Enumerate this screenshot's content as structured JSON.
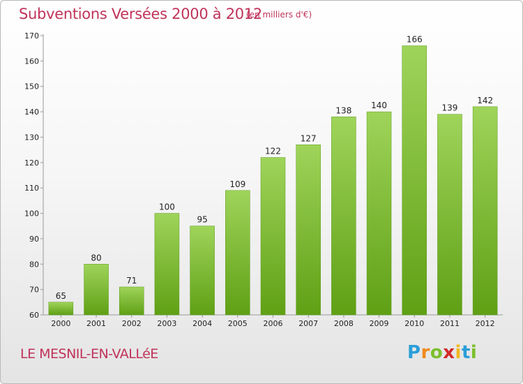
{
  "title": "Subventions Versées 2000 à 2012",
  "subtitle": "(en milliers d'€)",
  "commune": "LE MESNIL-EN-VALLéE",
  "logo": {
    "letters": [
      "P",
      "r",
      "o",
      "x",
      "i",
      "t",
      "i"
    ],
    "colors": [
      "#2a9fd8",
      "#f08a1c",
      "#7bbf2a",
      "#d22a2a",
      "#f2b81e",
      "#2a9fd8",
      "#7bbf2a"
    ]
  },
  "colors": {
    "title": "#c0335a",
    "bar_top": "#9fd45a",
    "bar_bottom": "#5fa015",
    "grid": "#cccccc"
  },
  "chart_data": {
    "type": "bar",
    "title": "Subventions Versées 2000 à 2012",
    "subtitle": "(en milliers d'€)",
    "categories": [
      "2000",
      "2001",
      "2002",
      "2003",
      "2004",
      "2005",
      "2006",
      "2007",
      "2008",
      "2009",
      "2010",
      "2011",
      "2012"
    ],
    "values": [
      65,
      80,
      71,
      100,
      95,
      109,
      122,
      127,
      138,
      140,
      166,
      139,
      142
    ],
    "ylim": [
      60,
      170
    ],
    "yticks": [
      60,
      70,
      80,
      90,
      100,
      110,
      120,
      130,
      140,
      150,
      160,
      170
    ],
    "grid": "none",
    "data_labels": true
  }
}
